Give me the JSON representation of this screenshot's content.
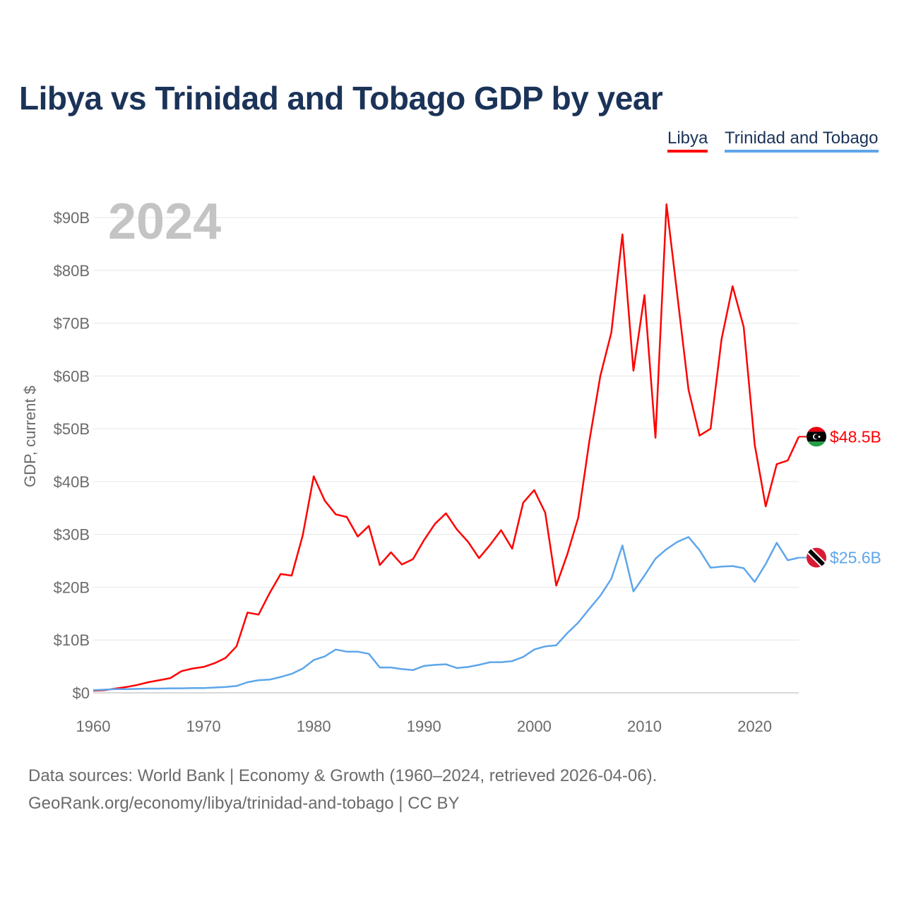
{
  "title": "Libya vs Trinidad and Tobago GDP by year",
  "legend": [
    {
      "label": "Libya",
      "color": "#ff0000"
    },
    {
      "label": "Trinidad and Tobago",
      "color": "#5ea6ea"
    }
  ],
  "sources": {
    "line1": "Data sources: World Bank | Economy & Growth (1960–2024, retrieved 2026-04-06).",
    "line2": "GeoRank.org/economy/libya/trinidad-and-tobago | CC BY"
  },
  "chart_data": {
    "type": "line",
    "title": "Libya vs Trinidad and Tobago GDP by year",
    "year_watermark": "2024",
    "xlabel": "",
    "ylabel": "GDP, current $",
    "xlim": [
      1960,
      2024
    ],
    "ylim": [
      0,
      90
    ],
    "x_ticks": [
      1960,
      1970,
      1980,
      1990,
      2000,
      2010,
      2020
    ],
    "y_ticks": [
      0,
      10,
      20,
      30,
      40,
      50,
      60,
      70,
      80,
      90
    ],
    "y_tick_labels": [
      "$0",
      "$10B",
      "$20B",
      "$30B",
      "$40B",
      "$50B",
      "$60B",
      "$70B",
      "$80B",
      "$90B"
    ],
    "grid": true,
    "legend_position": "top-right",
    "x_start": 1960,
    "series": [
      {
        "name": "Libya",
        "color": "#ff0000",
        "end_label": "$48.5B",
        "values": [
          0.4,
          0.5,
          0.8,
          1.1,
          1.5,
          2.0,
          2.4,
          2.8,
          4.1,
          4.6,
          4.9,
          5.6,
          6.6,
          8.8,
          15.2,
          14.8,
          18.9,
          22.5,
          22.2,
          29.8,
          41.0,
          36.4,
          33.8,
          33.3,
          29.6,
          31.6,
          24.2,
          26.6,
          24.3,
          25.3,
          28.9,
          32.0,
          34.0,
          30.9,
          28.6,
          25.5,
          28.0,
          30.8,
          27.3,
          36.0,
          38.4,
          34.1,
          20.3,
          26.2,
          33.2,
          47.6,
          60.0,
          68.2,
          86.8,
          61.0,
          75.3,
          48.3,
          92.5,
          75.0,
          57.4,
          48.7,
          50.0,
          67.0,
          77.0,
          69.3,
          47.0,
          35.3,
          43.3,
          44.0,
          48.5
        ]
      },
      {
        "name": "Trinidad and Tobago",
        "color": "#5ea6ea",
        "end_label": "$25.6B",
        "values": [
          0.5,
          0.6,
          0.7,
          0.7,
          0.75,
          0.8,
          0.8,
          0.85,
          0.85,
          0.9,
          0.9,
          1.0,
          1.1,
          1.3,
          2.0,
          2.4,
          2.5,
          3.0,
          3.6,
          4.6,
          6.2,
          6.9,
          8.2,
          7.8,
          7.8,
          7.4,
          4.8,
          4.8,
          4.5,
          4.3,
          5.1,
          5.3,
          5.4,
          4.7,
          4.9,
          5.3,
          5.8,
          5.8,
          6.0,
          6.8,
          8.2,
          8.8,
          9.0,
          11.3,
          13.3,
          15.9,
          18.4,
          21.6,
          27.9,
          19.2,
          22.2,
          25.4,
          27.2,
          28.6,
          29.5,
          27.0,
          23.7,
          23.9,
          24.0,
          23.6,
          21.0,
          24.4,
          28.4,
          25.1,
          25.6
        ]
      }
    ]
  }
}
